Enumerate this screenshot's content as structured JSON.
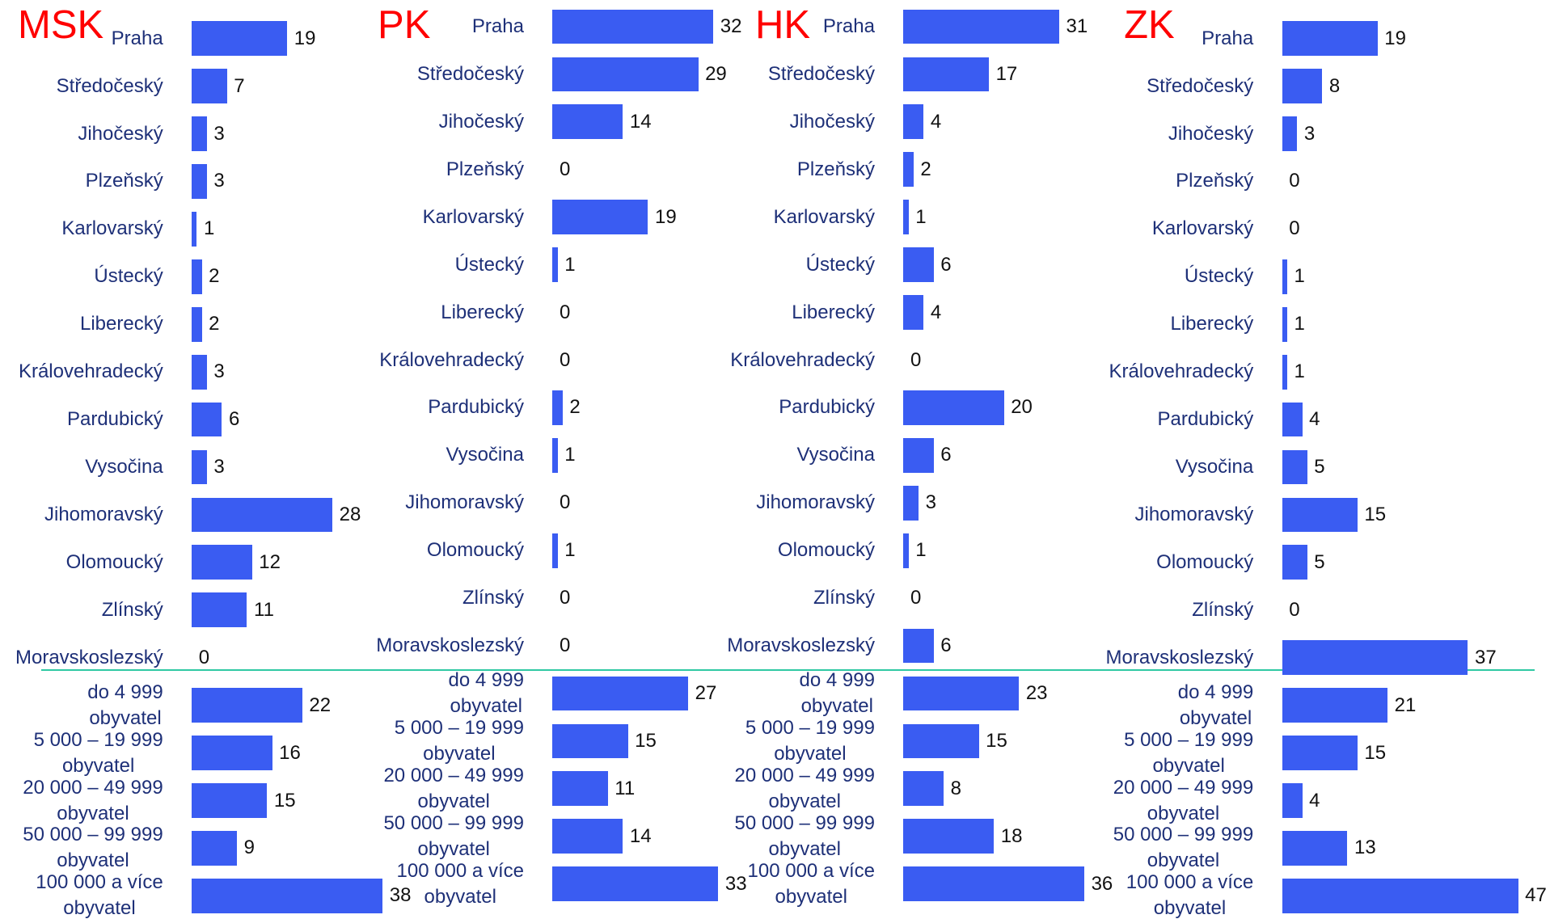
{
  "chart_data": [
    {
      "type": "bar",
      "title": "MSK",
      "color": "#3a5cf2",
      "categories": [
        "Praha",
        "Středočeský",
        "Jihočeský",
        "Plzeňský",
        "Karlovarský",
        "Ústecký",
        "Liberecký",
        "Královehradecký",
        "Pardubický",
        "Vysočina",
        "Jihomoravský",
        "Olomoucký",
        "Zlínský",
        "Moravskoslezský",
        "do 4 999\nobyvatel",
        "5 000 – 19 999\nobyvatel",
        "20 000 – 49 999\nobyvatel",
        "50 000 – 99 999\nobyvatel",
        "100 000 a více\nobyvatel"
      ],
      "values": [
        19,
        7,
        3,
        3,
        1,
        2,
        2,
        3,
        6,
        3,
        28,
        12,
        11,
        0,
        22,
        16,
        15,
        9,
        38
      ]
    },
    {
      "type": "bar",
      "title": "PK",
      "color": "#3a5cf2",
      "categories": [
        "Praha",
        "Středočeský",
        "Jihočeský",
        "Plzeňský",
        "Karlovarský",
        "Ústecký",
        "Liberecký",
        "Královehradecký",
        "Pardubický",
        "Vysočina",
        "Jihomoravský",
        "Olomoucký",
        "Zlínský",
        "Moravskoslezský",
        "do 4 999\nobyvatel",
        "5 000 – 19 999\nobyvatel",
        "20 000 – 49 999\nobyvatel",
        "50 000 – 99 999\nobyvatel",
        "100 000 a více\nobyvatel"
      ],
      "values": [
        32,
        29,
        14,
        0,
        19,
        1,
        0,
        0,
        2,
        1,
        0,
        1,
        0,
        0,
        27,
        15,
        11,
        14,
        33
      ]
    },
    {
      "type": "bar",
      "title": "HK",
      "color": "#3a5cf2",
      "categories": [
        "Praha",
        "Středočeský",
        "Jihočeský",
        "Plzeňský",
        "Karlovarský",
        "Ústecký",
        "Liberecký",
        "Královehradecký",
        "Pardubický",
        "Vysočina",
        "Jihomoravský",
        "Olomoucký",
        "Zlínský",
        "Moravskoslezský",
        "do 4 999\nobyvatel",
        "5 000 – 19 999\nobyvatel",
        "20 000 – 49 999\nobyvatel",
        "50 000 – 99 999\nobyvatel",
        "100 000 a více\nobyvatel"
      ],
      "values": [
        31,
        17,
        4,
        2,
        1,
        6,
        4,
        0,
        20,
        6,
        3,
        1,
        0,
        6,
        23,
        15,
        8,
        18,
        36
      ]
    },
    {
      "type": "bar",
      "title": "ZK",
      "color": "#3a5cf2",
      "categories": [
        "Praha",
        "Středočeský",
        "Jihočeský",
        "Plzeňský",
        "Karlovarský",
        "Ústecký",
        "Liberecký",
        "Královehradecký",
        "Pardubický",
        "Vysočina",
        "Jihomoravský",
        "Olomoucký",
        "Zlínský",
        "Moravskoslezský",
        "do 4 999\nobyvatel",
        "5 000 – 19 999\nobyvatel",
        "20 000 – 49 999\nobyvatel",
        "50 000 – 99 999\nobyvatel",
        "100 000 a více\nobyvatel"
      ],
      "values": [
        19,
        8,
        3,
        0,
        0,
        1,
        1,
        1,
        4,
        5,
        15,
        5,
        0,
        37,
        21,
        15,
        4,
        13,
        47
      ]
    }
  ]
}
